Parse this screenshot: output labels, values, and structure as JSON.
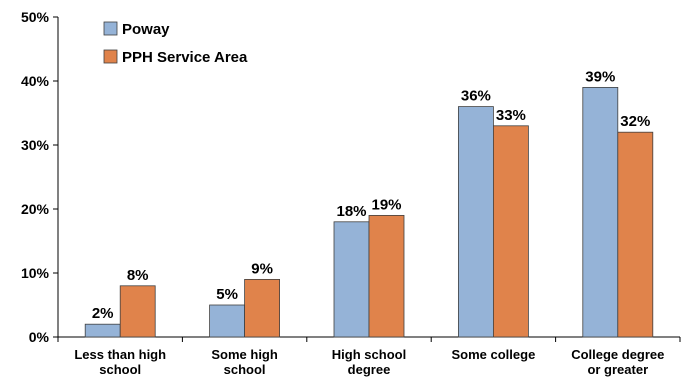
{
  "chart_data": {
    "type": "bar",
    "categories": [
      [
        "Less than high",
        "school"
      ],
      [
        "Some high",
        "school"
      ],
      [
        "High school",
        "degree"
      ],
      [
        "Some college"
      ],
      [
        "College degree",
        "or greater"
      ]
    ],
    "series": [
      {
        "name": "Poway",
        "values": [
          2,
          5,
          18,
          36,
          39
        ],
        "labels": [
          "2%",
          "5%",
          "18%",
          "36%",
          "39%"
        ],
        "color": "#95b3d7"
      },
      {
        "name": "PPH Service Area",
        "values": [
          8,
          9,
          19,
          33,
          32
        ],
        "labels": [
          "8%",
          "9%",
          "19%",
          "33%",
          "32%"
        ],
        "color": "#e0834b"
      }
    ],
    "ylim": [
      0,
      50
    ],
    "yticks": [
      0,
      10,
      20,
      30,
      40,
      50
    ],
    "ytick_labels": [
      "0%",
      "10%",
      "20%",
      "30%",
      "40%",
      "50%"
    ],
    "legend_position": "top-left",
    "grid": false
  }
}
